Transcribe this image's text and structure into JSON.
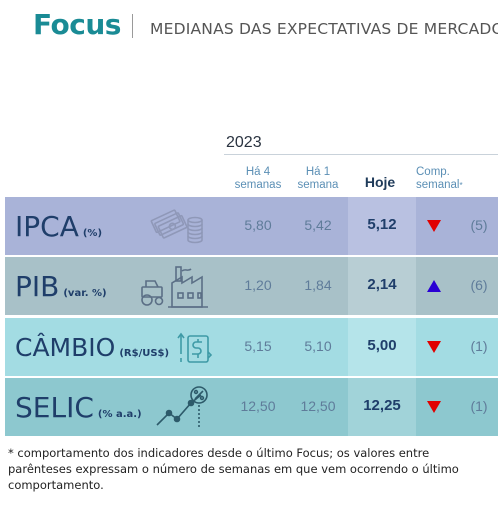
{
  "header": {
    "brand": "Focus",
    "subtitle": "MEDIANAS DAS EXPECTATIVAS DE MERCADO"
  },
  "table": {
    "year": "2023",
    "columns": {
      "weeks4_line1": "Há 4",
      "weeks4_line2": "semanas",
      "weeks1_line1": "Há 1",
      "weeks1_line2": "semana",
      "today": "Hoje",
      "weekly_line1": "Comp.",
      "weekly_line2": "semanal",
      "weekly_mark": "*"
    },
    "rows": [
      {
        "name": "IPCA",
        "unit": "(%)",
        "icon": "money-stack-icon",
        "weeks4": "5,80",
        "weeks1": "5,42",
        "today": "5,12",
        "trend": "down",
        "trend_color": "#e00000",
        "streak": "(5)"
      },
      {
        "name": "PIB",
        "unit": "(var. %)",
        "icon": "factory-tractor-icon",
        "weeks4": "1,20",
        "weeks1": "1,84",
        "today": "2,14",
        "trend": "up",
        "trend_color": "#2a00d4",
        "streak": "(6)"
      },
      {
        "name": "CÂMBIO",
        "unit": "(R$/US$)",
        "icon": "dollar-exchange-icon",
        "weeks4": "5,15",
        "weeks1": "5,10",
        "today": "5,00",
        "trend": "down",
        "trend_color": "#e00000",
        "streak": "(1)"
      },
      {
        "name": "SELIC",
        "unit": "(% a.a.)",
        "icon": "percent-chart-icon",
        "weeks4": "12,50",
        "weeks1": "12,50",
        "today": "12,25",
        "trend": "down",
        "trend_color": "#e00000",
        "streak": "(1)"
      }
    ]
  },
  "footnote": "* comportamento dos indicadores desde o último Focus; os valores entre parênteses expressam o número de semanas em que vem ocorrendo o último comportamento."
}
